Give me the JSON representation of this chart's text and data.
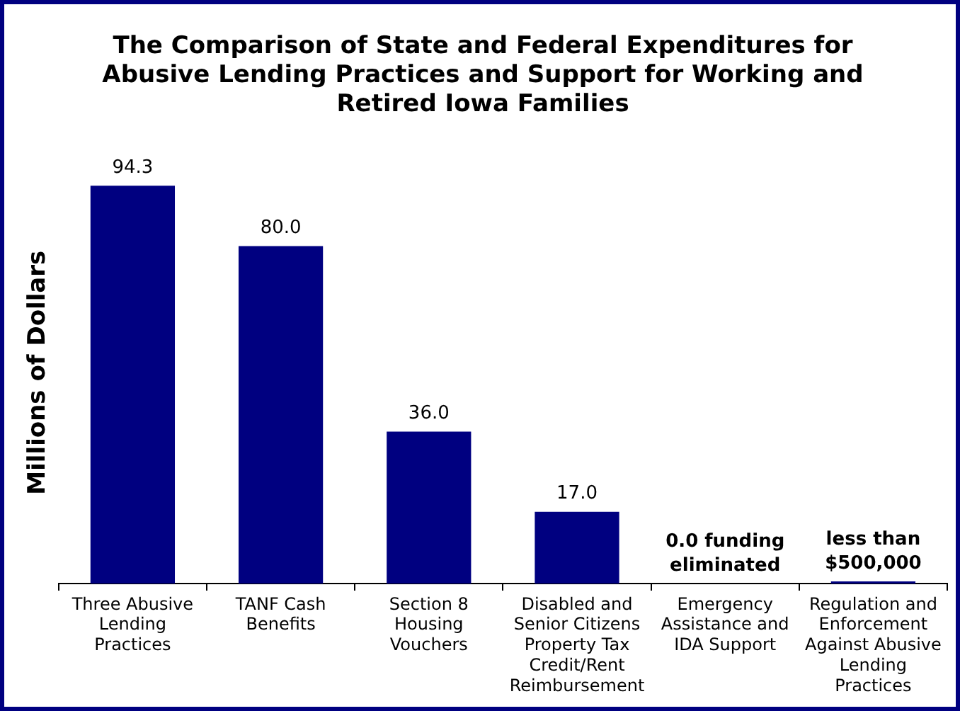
{
  "chart_data": {
    "type": "bar",
    "title": "The Comparison of State and Federal Expenditures for Abusive Lending Practices and Support for Working and Retired Iowa Families",
    "ylabel": "Millions of Dollars",
    "categories": [
      "Three Abusive Lending Practices",
      "TANF Cash Benefits",
      "Section 8 Housing Vouchers",
      "Disabled and Senior Citizens Property Tax Credit/Rent Reimbursement",
      "Emergency Assistance and IDA Support",
      "Regulation and Enforcement Against Abusive Lending Practices"
    ],
    "values": [
      94.3,
      80.0,
      36.0,
      17.0,
      0.0,
      0.5
    ],
    "value_labels": [
      "94.3",
      "80.0",
      "36.0",
      "17.0",
      "0.0 funding eliminated",
      "less than $500,000"
    ],
    "color": "#000080",
    "tick_labels": "x",
    "legend": false
  }
}
